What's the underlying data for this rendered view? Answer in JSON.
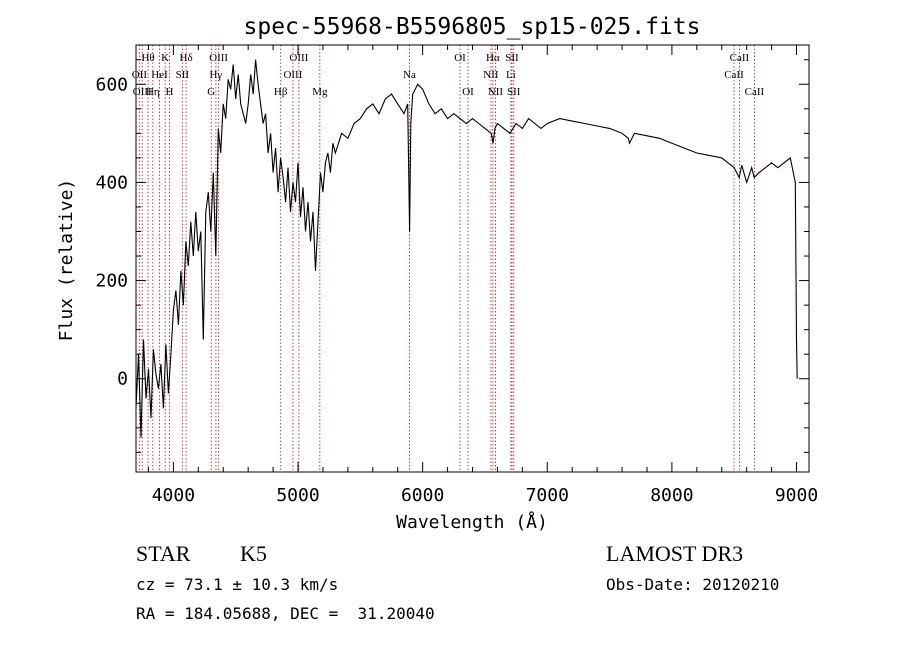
{
  "chart_data": {
    "type": "line",
    "title": "spec-55968-B5596805_sp15-025.fits",
    "xlabel": "Wavelength (Å)",
    "ylabel": "Flux (relative)",
    "xlim": [
      3700,
      9100
    ],
    "ylim": [
      -190,
      680
    ],
    "xticks": [
      4000,
      5000,
      6000,
      7000,
      8000,
      9000
    ],
    "yticks": [
      0,
      200,
      400,
      600
    ],
    "grid": false,
    "series": [
      {
        "name": "flux",
        "x": [
          3700,
          3720,
          3740,
          3760,
          3780,
          3800,
          3820,
          3840,
          3860,
          3880,
          3900,
          3920,
          3940,
          3960,
          3980,
          4000,
          4020,
          4040,
          4060,
          4080,
          4100,
          4120,
          4140,
          4160,
          4180,
          4200,
          4220,
          4240,
          4260,
          4280,
          4300,
          4320,
          4340,
          4360,
          4380,
          4400,
          4420,
          4440,
          4460,
          4480,
          4500,
          4520,
          4540,
          4560,
          4580,
          4600,
          4620,
          4640,
          4660,
          4680,
          4700,
          4720,
          4740,
          4760,
          4780,
          4800,
          4820,
          4840,
          4860,
          4880,
          4900,
          4920,
          4940,
          4960,
          4980,
          5000,
          5020,
          5040,
          5060,
          5080,
          5100,
          5120,
          5140,
          5160,
          5180,
          5200,
          5220,
          5240,
          5260,
          5280,
          5300,
          5350,
          5400,
          5450,
          5500,
          5550,
          5600,
          5650,
          5700,
          5750,
          5800,
          5850,
          5880,
          5895,
          5905,
          5920,
          5960,
          6000,
          6050,
          6100,
          6150,
          6200,
          6250,
          6300,
          6350,
          6400,
          6450,
          6500,
          6550,
          6565,
          6580,
          6600,
          6650,
          6700,
          6750,
          6800,
          6850,
          6900,
          6950,
          7000,
          7100,
          7200,
          7300,
          7400,
          7500,
          7600,
          7650,
          7660,
          7700,
          7800,
          7900,
          8000,
          8100,
          8200,
          8300,
          8400,
          8450,
          8500,
          8540,
          8560,
          8600,
          8640,
          8660,
          8700,
          8750,
          8800,
          8850,
          8900,
          8950,
          8990,
          9000,
          9005
        ],
        "y": [
          -60,
          50,
          -120,
          80,
          -40,
          20,
          -80,
          60,
          10,
          -20,
          30,
          -60,
          70,
          -30,
          50,
          140,
          180,
          110,
          220,
          150,
          280,
          230,
          320,
          250,
          340,
          260,
          300,
          80,
          340,
          380,
          300,
          420,
          250,
          510,
          460,
          560,
          530,
          610,
          590,
          640,
          570,
          620,
          560,
          540,
          520,
          560,
          620,
          580,
          650,
          600,
          560,
          520,
          540,
          460,
          500,
          420,
          470,
          380,
          450,
          410,
          360,
          430,
          340,
          400,
          360,
          440,
          330,
          390,
          300,
          360,
          280,
          340,
          220,
          320,
          420,
          380,
          440,
          460,
          420,
          480,
          460,
          500,
          490,
          520,
          530,
          550,
          560,
          540,
          570,
          580,
          560,
          540,
          560,
          300,
          520,
          580,
          600,
          590,
          560,
          540,
          550,
          530,
          540,
          530,
          520,
          530,
          520,
          510,
          500,
          480,
          510,
          520,
          510,
          500,
          520,
          510,
          530,
          520,
          510,
          520,
          530,
          525,
          520,
          515,
          510,
          500,
          490,
          480,
          500,
          495,
          490,
          480,
          470,
          460,
          455,
          450,
          440,
          430,
          410,
          435,
          400,
          430,
          410,
          420,
          430,
          440,
          430,
          440,
          450,
          400,
          80,
          0
        ]
      }
    ],
    "lines": [
      {
        "label": "Hθ",
        "x": 3797,
        "row": 1
      },
      {
        "label": "OII",
        "x": 3727,
        "row": 2
      },
      {
        "label": "OIII",
        "x": 3750,
        "row": 3
      },
      {
        "label": "Hη",
        "x": 3835,
        "row": 3
      },
      {
        "label": "HeI",
        "x": 3889,
        "row": 2
      },
      {
        "label": "K",
        "x": 3934,
        "row": 1
      },
      {
        "label": "H",
        "x": 3969,
        "row": 3
      },
      {
        "label": "SII",
        "x": 4072,
        "row": 2
      },
      {
        "label": "Hδ",
        "x": 4102,
        "row": 1
      },
      {
        "label": "OIII",
        "x": 4363,
        "row": 1
      },
      {
        "label": "Hγ",
        "x": 4341,
        "row": 2
      },
      {
        "label": "G",
        "x": 4304,
        "row": 3
      },
      {
        "label": "Hβ",
        "x": 4861,
        "row": 3
      },
      {
        "label": "OIII",
        "x": 5007,
        "row": 1
      },
      {
        "label": "OIII",
        "x": 4959,
        "row": 2
      },
      {
        "label": "Mg",
        "x": 5175,
        "row": 3
      },
      {
        "label": "Na",
        "x": 5894,
        "row": 2
      },
      {
        "label": "OI",
        "x": 6300,
        "row": 1
      },
      {
        "label": "OI",
        "x": 6364,
        "row": 3
      },
      {
        "label": "Hα",
        "x": 6563,
        "row": 1
      },
      {
        "label": "NII",
        "x": 6548,
        "row": 2
      },
      {
        "label": "NII",
        "x": 6584,
        "row": 3
      },
      {
        "label": "SII",
        "x": 6717,
        "row": 1
      },
      {
        "label": "Li",
        "x": 6708,
        "row": 2
      },
      {
        "label": "SII",
        "x": 6731,
        "row": 3
      },
      {
        "label": "CaII",
        "x": 8542,
        "row": 1
      },
      {
        "label": "CaII",
        "x": 8498,
        "row": 2
      },
      {
        "label": "CaII",
        "x": 8662,
        "row": 3
      }
    ]
  },
  "info": {
    "object_class": "STAR",
    "subclass": "K5",
    "survey": "LAMOST DR3",
    "redshift": "cz = 73.1 ± 10.3 km/s",
    "obs_date": "Obs-Date: 20120210",
    "coords": "RA = 184.05688, DEC =  31.20040"
  },
  "colors": {
    "line_marker": "#b03030",
    "spectrum": "#000000"
  }
}
